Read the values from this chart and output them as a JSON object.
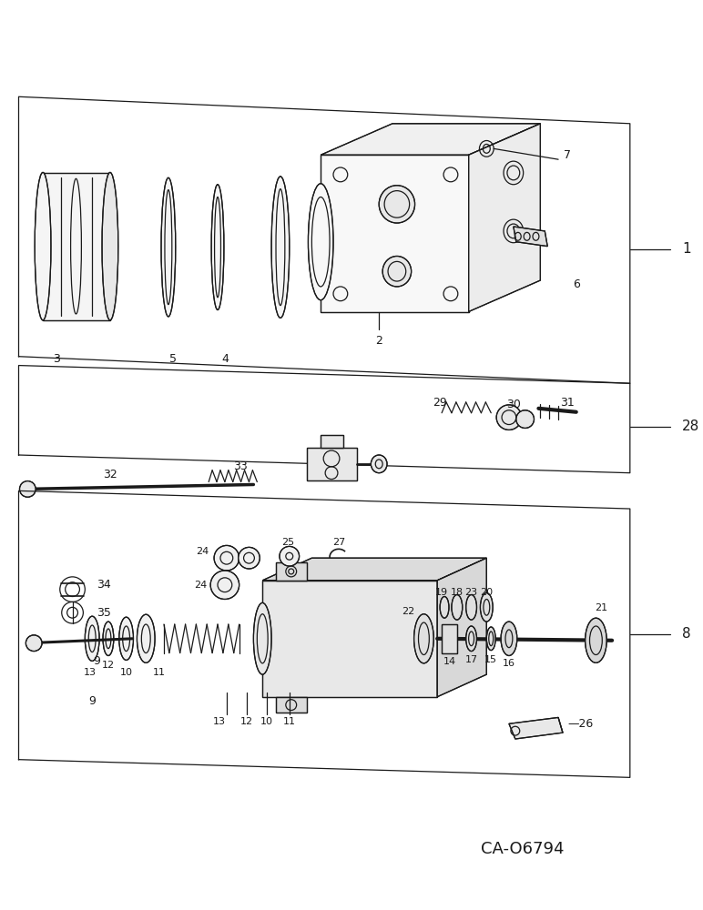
{
  "bg_color": "#ffffff",
  "line_color": "#1a1a1a",
  "fig_width": 7.72,
  "fig_height": 10.0,
  "catalog_number": "CA-O6794",
  "lw": 0.9
}
